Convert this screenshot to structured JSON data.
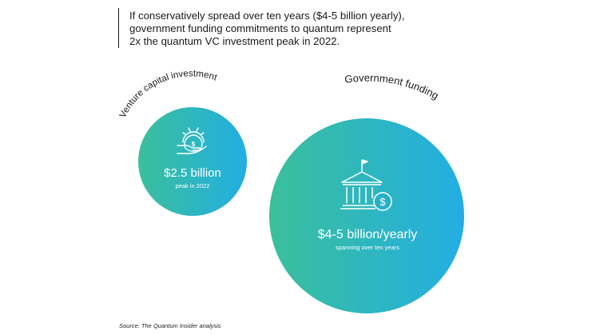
{
  "intro_text": [
    "If conservatively spread over ten years ($4-5 billion yearly),",
    "government funding commitments to quantum represent",
    "2x the quantum VC investment peak in 2022."
  ],
  "chart_data": {
    "type": "bubble",
    "bubbles": [
      {
        "name": "Venture capital investment",
        "value_label": "$2.5 billion",
        "caption": "peak in 2022",
        "value": 2.5,
        "icon": "money-bag-gear-hand-icon"
      },
      {
        "name": "Government funding",
        "value_label": "$4-5 billion/yearly",
        "caption": "spanning over ten years",
        "value": 4.5,
        "icon": "government-building-dollar-icon"
      }
    ],
    "colors": {
      "gradient_start": "#3bbf9b",
      "gradient_end": "#22aee3",
      "text": "#ffffff"
    }
  },
  "source_note": "Source: The Quantum Insider analysis"
}
